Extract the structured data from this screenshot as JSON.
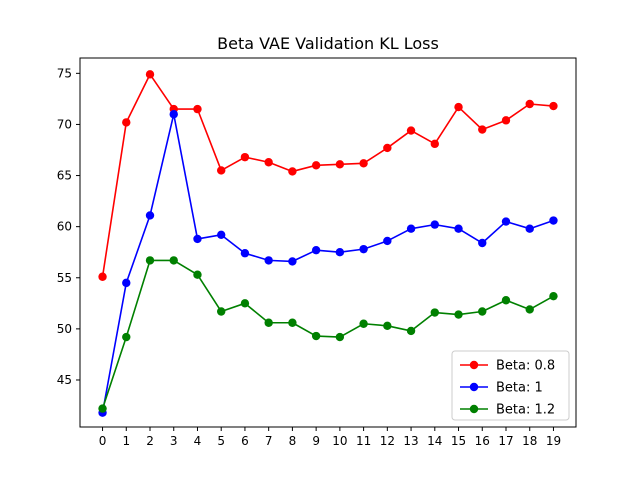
{
  "chart_data": {
    "type": "line",
    "title": "Beta VAE Validation KL Loss",
    "xlabel": "",
    "ylabel": "",
    "x": [
      0,
      1,
      2,
      3,
      4,
      5,
      6,
      7,
      8,
      9,
      10,
      11,
      12,
      13,
      14,
      15,
      16,
      17,
      18,
      19
    ],
    "x_ticks": [
      "0",
      "1",
      "2",
      "3",
      "4",
      "5",
      "6",
      "7",
      "8",
      "9",
      "10",
      "11",
      "12",
      "13",
      "14",
      "15",
      "16",
      "17",
      "18",
      "19"
    ],
    "xlim": [
      -0.95,
      19.95
    ],
    "ylim": [
      40.4,
      76.5
    ],
    "y_ticks": [
      "45",
      "50",
      "55",
      "60",
      "65",
      "70",
      "75"
    ],
    "grid": false,
    "legend_position": "lower-right",
    "series": [
      {
        "name": "Beta: 0.8",
        "color": "#ff0000",
        "values": [
          55.1,
          70.2,
          74.9,
          71.5,
          71.5,
          65.5,
          66.8,
          66.3,
          65.4,
          66.0,
          66.1,
          66.2,
          67.7,
          69.4,
          68.1,
          71.7,
          69.5,
          70.4,
          72.0,
          71.8
        ]
      },
      {
        "name": "Beta: 1",
        "color": "#0000ff",
        "values": [
          41.8,
          54.5,
          61.1,
          71.0,
          58.8,
          59.2,
          57.4,
          56.7,
          56.6,
          57.7,
          57.5,
          57.8,
          58.6,
          59.8,
          60.2,
          59.8,
          58.4,
          60.5,
          59.8,
          60.6
        ]
      },
      {
        "name": "Beta: 1.2",
        "color": "#008000",
        "values": [
          42.2,
          49.2,
          56.7,
          56.7,
          55.3,
          51.7,
          52.5,
          50.6,
          50.6,
          49.3,
          49.2,
          50.5,
          50.3,
          49.8,
          51.6,
          51.4,
          51.7,
          52.8,
          51.9,
          53.2
        ]
      }
    ]
  }
}
